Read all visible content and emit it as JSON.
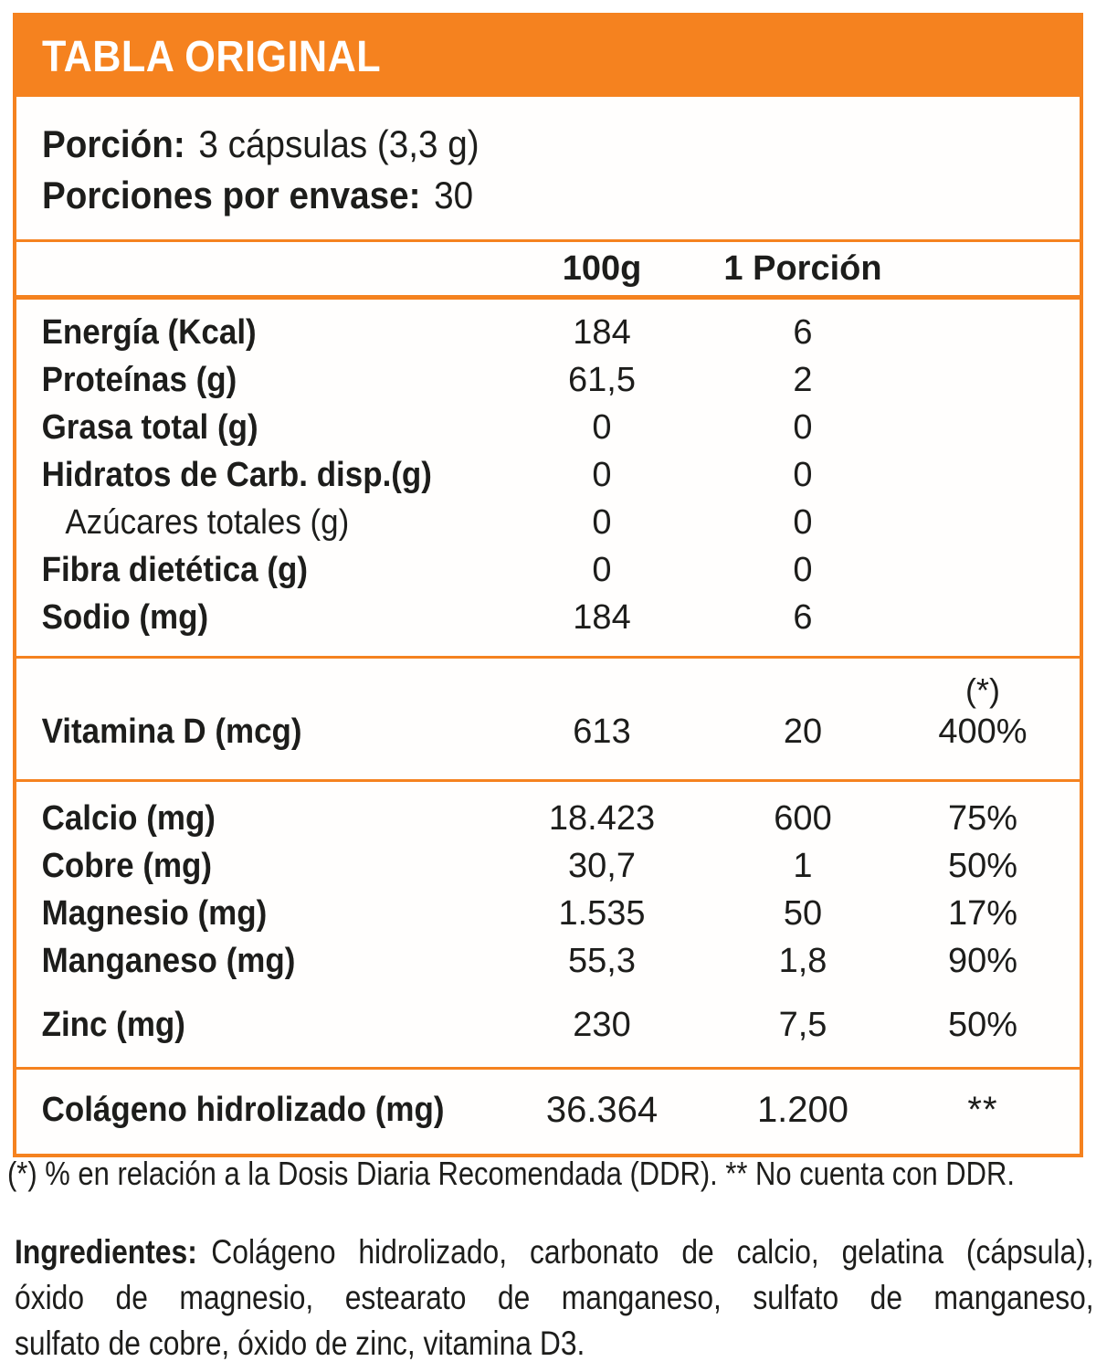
{
  "colors": {
    "accent_orange": "#F5821F",
    "text_black": "#1D1D1B",
    "title_white": "#FFFFFF"
  },
  "title": "TABLA ORIGINAL",
  "serving": {
    "porcion_label": "Porción:",
    "porcion_value": "3 cápsulas (3,3 g)",
    "envase_label": "Porciones por envase:",
    "envase_value": "30"
  },
  "columns": {
    "per_100g": "100g",
    "per_serving": "1 Porción"
  },
  "ddr_marker": "(*)",
  "nutrients": [
    {
      "label": "Energía (Kcal)",
      "per_100g": "184",
      "per_serving": "6"
    },
    {
      "label": "Proteínas (g)",
      "per_100g": "61,5",
      "per_serving": "2"
    },
    {
      "label": "Grasa total (g)",
      "per_100g": "0",
      "per_serving": "0"
    },
    {
      "label": "Hidratos de Carb. disp.(g)",
      "per_100g": "0",
      "per_serving": "0"
    },
    {
      "label": "Azúcares totales (g)",
      "per_100g": "0",
      "per_serving": "0"
    },
    {
      "label": "Fibra dietética (g)",
      "per_100g": "0",
      "per_serving": "0"
    },
    {
      "label": "Sodio (mg)",
      "per_100g": "184",
      "per_serving": "6"
    }
  ],
  "vitamins": [
    {
      "label": "Vitamina D (mcg)",
      "per_100g": "613",
      "per_serving": "20",
      "ddr": "400%"
    }
  ],
  "minerals": [
    {
      "label": "Calcio (mg)",
      "per_100g": "18.423",
      "per_serving": "600",
      "ddr": "75%"
    },
    {
      "label": "Cobre (mg)",
      "per_100g": "30,7",
      "per_serving": "1",
      "ddr": "50%"
    },
    {
      "label": "Magnesio (mg)",
      "per_100g": "1.535",
      "per_serving": "50",
      "ddr": "17%"
    },
    {
      "label": "Manganeso (mg)",
      "per_100g": "55,3",
      "per_serving": "1,8",
      "ddr": "90%"
    },
    {
      "label": "Zinc (mg)",
      "per_100g": "230",
      "per_serving": "7,5",
      "ddr": "50%"
    }
  ],
  "collagen": {
    "label": "Colágeno hidrolizado (mg)",
    "per_100g": "36.364",
    "per_serving": "1.200",
    "ddr": "**"
  },
  "footnote": "(*) % en relación a la Dosis Diaria Recomendada (DDR). ** No cuenta con DDR.",
  "ingredients": {
    "label": "Ingredientes:",
    "line1": "Colágeno hidrolizado, carbonato de calcio, gelatina (cápsula),",
    "line2": "óxido de magnesio, estearato de manganeso, sulfato de manganeso,",
    "line3": "sulfato de cobre, óxido de zinc, vitamina D3."
  }
}
